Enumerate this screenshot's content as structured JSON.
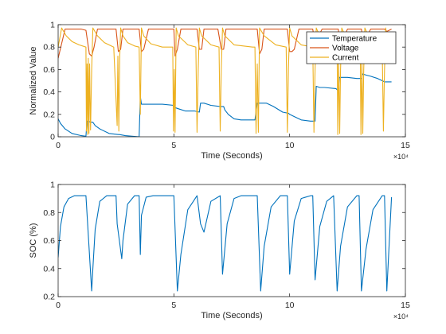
{
  "chart_data": [
    {
      "type": "line",
      "title": "",
      "xlabel": "Time (Seconds)",
      "ylabel": "Normalized Value",
      "x_exponent_label": "×10⁴",
      "xlim": [
        0,
        15
      ],
      "ylim": [
        0,
        1
      ],
      "xticks": [
        0,
        5,
        10,
        15
      ],
      "yticks": [
        0,
        0.2,
        0.4,
        0.6,
        0.8,
        1
      ],
      "ytick_labels": [
        "0",
        "0.2",
        "0.4",
        "0.6",
        "0.8",
        "1"
      ],
      "grid": false,
      "legend": {
        "placement": "top-right",
        "entries": [
          "Temperature",
          "Voltage",
          "Current"
        ]
      },
      "series": [
        {
          "name": "Temperature",
          "color": "#0072BD",
          "x": [
            0,
            0.1,
            0.3,
            0.6,
            1.0,
            1.2,
            1.25,
            1.45,
            1.5,
            1.6,
            1.8,
            2.2,
            2.6,
            2.65,
            2.9,
            3.2,
            3.5,
            3.55,
            3.6,
            3.9,
            4.2,
            4.5,
            5.0,
            5.05,
            5.2,
            5.5,
            5.9,
            6.1,
            6.15,
            6.3,
            6.6,
            7.0,
            7.15,
            7.2,
            7.35,
            7.6,
            7.9,
            8.2,
            8.5,
            8.6,
            8.8,
            9.0,
            9.3,
            9.7,
            9.95,
            10.0,
            10.2,
            10.5,
            10.9,
            11.1,
            11.15,
            11.3,
            11.5,
            12.0,
            12.1,
            12.15,
            12.3,
            12.5,
            12.9,
            13.1,
            13.15,
            13.3,
            13.5,
            13.8,
            14.0,
            14.1,
            14.2,
            14.4
          ],
          "y": [
            0.16,
            0.12,
            0.07,
            0.03,
            0.01,
            0.005,
            0.14,
            0.13,
            0.13,
            0.1,
            0.07,
            0.03,
            0.02,
            0.02,
            0.01,
            0.005,
            0.0,
            0.36,
            0.29,
            0.29,
            0.29,
            0.29,
            0.28,
            0.26,
            0.25,
            0.23,
            0.23,
            0.22,
            0.3,
            0.3,
            0.28,
            0.27,
            0.27,
            0.24,
            0.2,
            0.16,
            0.15,
            0.15,
            0.15,
            0.3,
            0.3,
            0.3,
            0.27,
            0.22,
            0.21,
            0.2,
            0.18,
            0.15,
            0.14,
            0.14,
            0.45,
            0.44,
            0.44,
            0.43,
            0.41,
            0.53,
            0.53,
            0.53,
            0.52,
            0.52,
            0.56,
            0.55,
            0.54,
            0.52,
            0.5,
            0.49,
            0.49,
            0.49
          ]
        },
        {
          "name": "Voltage",
          "color": "#D95319",
          "x": [
            0,
            0.3,
            1.0,
            1.2,
            1.35,
            1.45,
            1.55,
            1.7,
            2.5,
            2.6,
            2.7,
            2.8,
            2.9,
            3.5,
            3.6,
            3.7,
            3.9,
            5.0,
            5.05,
            5.15,
            5.3,
            5.5,
            6.0,
            6.1,
            6.2,
            6.3,
            6.9,
            7.05,
            7.15,
            7.25,
            7.4,
            8.6,
            8.7,
            8.8,
            8.9,
            9.9,
            10.0,
            10.1,
            10.2,
            10.4,
            11.0,
            11.1,
            11.2,
            11.4,
            12.1,
            12.2,
            12.3,
            12.5,
            13.1,
            13.2,
            13.3,
            13.5,
            14.1,
            14.2,
            14.4
          ],
          "y": [
            0.7,
            0.96,
            0.96,
            0.95,
            0.74,
            0.72,
            0.8,
            0.96,
            0.96,
            0.76,
            0.78,
            0.96,
            0.96,
            0.96,
            0.76,
            0.78,
            0.96,
            0.96,
            0.72,
            0.78,
            0.96,
            0.96,
            0.96,
            0.78,
            0.78,
            0.96,
            0.96,
            0.78,
            0.78,
            0.96,
            0.96,
            0.96,
            0.74,
            0.78,
            0.96,
            0.96,
            0.76,
            0.76,
            0.78,
            0.96,
            0.96,
            0.82,
            0.88,
            0.96,
            0.96,
            0.8,
            0.86,
            0.96,
            0.96,
            0.8,
            0.88,
            0.96,
            0.96,
            0.94,
            0.96
          ]
        },
        {
          "name": "Current",
          "color": "#EDB120",
          "x": [
            0,
            0.15,
            0.35,
            0.6,
            0.9,
            1.2,
            1.22,
            1.25,
            1.28,
            1.3,
            1.33,
            1.36,
            1.4,
            1.45,
            1.5,
            1.7,
            2.0,
            2.4,
            2.55,
            2.58,
            2.62,
            2.66,
            2.7,
            2.8,
            3.0,
            3.3,
            3.5,
            3.55,
            3.6,
            3.7,
            4.0,
            4.5,
            4.95,
            4.98,
            5.02,
            5.05,
            5.1,
            5.2,
            5.6,
            5.95,
            6.0,
            6.05,
            6.1,
            6.2,
            6.6,
            6.95,
            7.0,
            7.05,
            7.1,
            7.2,
            7.6,
            8.4,
            8.5,
            8.55,
            8.6,
            8.65,
            8.7,
            8.9,
            9.4,
            9.85,
            9.9,
            9.95,
            10.0,
            10.1,
            10.5,
            11.0,
            11.05,
            11.1,
            11.15,
            11.3,
            11.8,
            12.05,
            12.08,
            12.12,
            12.16,
            12.2,
            12.25,
            12.4,
            12.9,
            13.05,
            13.08,
            13.12,
            13.16,
            13.2,
            13.25,
            13.4,
            13.8,
            14.0,
            14.05,
            14.1,
            14.15,
            14.2,
            14.4
          ],
          "y": [
            0.8,
            0.97,
            0.9,
            0.85,
            0.82,
            0.8,
            0.05,
            0.65,
            0.02,
            0.7,
            0.03,
            0.65,
            0.06,
            0.6,
            0.97,
            0.9,
            0.84,
            0.8,
            0.1,
            0.72,
            0.05,
            0.7,
            0.97,
            0.9,
            0.84,
            0.81,
            0.8,
            0.2,
            0.97,
            0.9,
            0.83,
            0.8,
            0.8,
            0.05,
            0.6,
            0.04,
            0.97,
            0.9,
            0.82,
            0.8,
            0.04,
            0.6,
            0.97,
            0.9,
            0.82,
            0.8,
            0.05,
            0.62,
            0.97,
            0.9,
            0.82,
            0.8,
            0.8,
            0.03,
            0.65,
            0.04,
            0.97,
            0.9,
            0.82,
            0.8,
            0.04,
            0.62,
            0.97,
            0.9,
            0.82,
            0.8,
            0.04,
            0.6,
            0.97,
            0.9,
            0.82,
            0.8,
            0.02,
            0.7,
            0.03,
            0.6,
            0.97,
            0.9,
            0.82,
            0.8,
            0.02,
            0.72,
            0.03,
            0.6,
            0.97,
            0.9,
            0.82,
            0.8,
            0.05,
            0.6,
            0.97,
            0.9,
            0.82
          ]
        }
      ]
    },
    {
      "type": "line",
      "title": "",
      "xlabel": "Time (Seconds)",
      "ylabel": "SOC (%)",
      "x_exponent_label": "×10⁴",
      "xlim": [
        0,
        15
      ],
      "ylim": [
        0.2,
        1
      ],
      "xticks": [
        0,
        5,
        10,
        15
      ],
      "yticks": [
        0.2,
        0.4,
        0.6,
        0.8,
        1
      ],
      "ytick_labels": [
        "0.2",
        "0.4",
        "0.6",
        "0.8",
        "1"
      ],
      "grid": false,
      "legend": null,
      "series": [
        {
          "color": "#0072BD",
          "x": [
            0,
            0.1,
            0.25,
            0.45,
            0.7,
            1.0,
            1.2,
            1.45,
            1.5,
            1.6,
            1.8,
            2.1,
            2.5,
            2.55,
            2.75,
            2.8,
            3.0,
            3.3,
            3.5,
            3.55,
            3.6,
            3.8,
            4.1,
            4.5,
            5.0,
            5.15,
            5.3,
            5.6,
            6.0,
            6.15,
            6.3,
            6.6,
            7.0,
            7.1,
            7.3,
            7.6,
            7.9,
            8.3,
            8.6,
            8.75,
            8.9,
            9.2,
            9.6,
            9.9,
            10.0,
            10.2,
            10.5,
            10.9,
            11.0,
            11.1,
            11.3,
            11.6,
            11.9,
            12.05,
            12.2,
            12.5,
            12.9,
            13.0,
            13.1,
            13.3,
            13.6,
            14.0,
            14.1,
            14.2,
            14.4
          ],
          "y": [
            0.48,
            0.7,
            0.84,
            0.9,
            0.92,
            0.92,
            0.92,
            0.24,
            0.4,
            0.68,
            0.88,
            0.92,
            0.92,
            0.72,
            0.47,
            0.6,
            0.86,
            0.92,
            0.92,
            0.5,
            0.78,
            0.91,
            0.92,
            0.92,
            0.92,
            0.24,
            0.5,
            0.82,
            0.92,
            0.72,
            0.66,
            0.88,
            0.92,
            0.36,
            0.72,
            0.9,
            0.92,
            0.92,
            0.92,
            0.24,
            0.56,
            0.84,
            0.92,
            0.92,
            0.36,
            0.74,
            0.9,
            0.92,
            0.92,
            0.32,
            0.7,
            0.88,
            0.92,
            0.24,
            0.56,
            0.84,
            0.92,
            0.92,
            0.24,
            0.54,
            0.82,
            0.92,
            0.92,
            0.24,
            0.91
          ]
        }
      ]
    }
  ]
}
